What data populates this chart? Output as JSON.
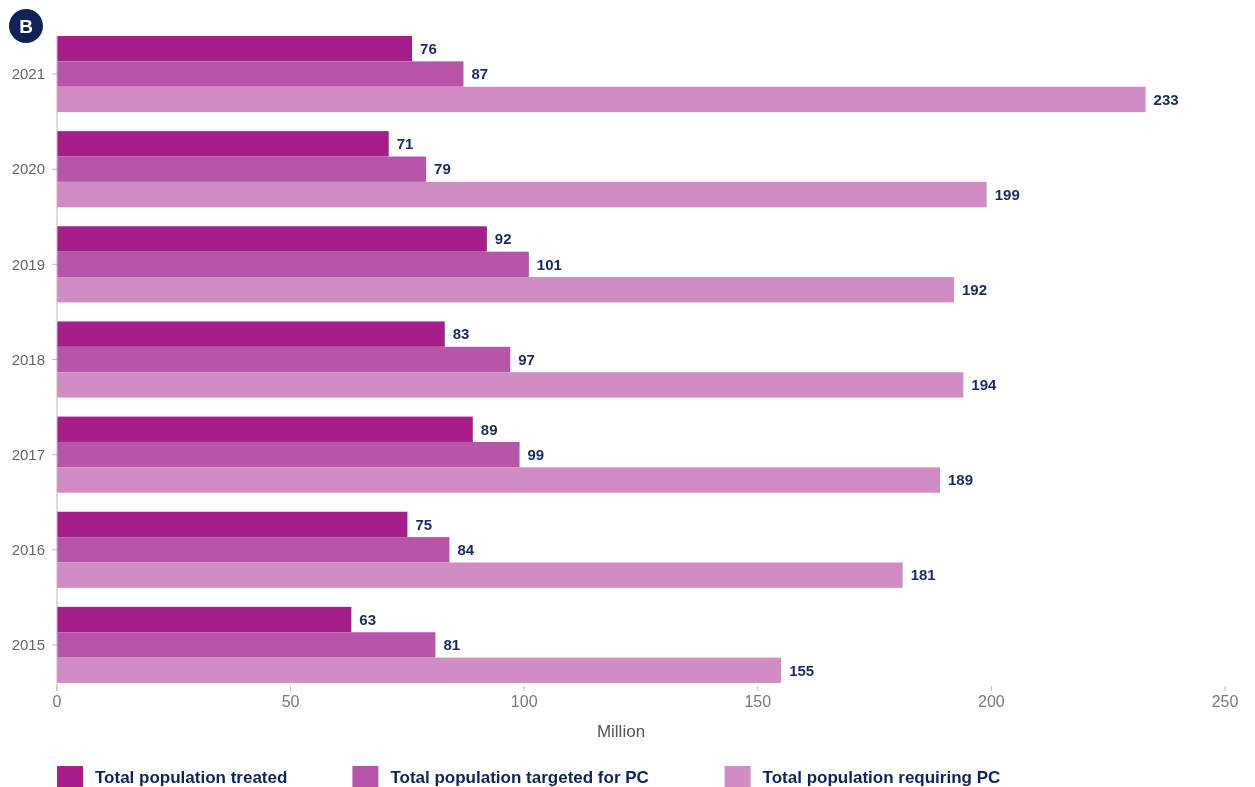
{
  "chart_data": {
    "type": "bar",
    "orientation": "horizontal",
    "xlabel": "Million",
    "annotations": [
      "B"
    ],
    "categories": [
      "2021",
      "2020",
      "2019",
      "2018",
      "2017",
      "2016",
      "2015"
    ],
    "series": [
      {
        "name": "Total population treated",
        "color": "#a51e8a",
        "values": [
          76,
          71,
          92,
          83,
          89,
          75,
          63
        ]
      },
      {
        "name": "Total population targeted for PC",
        "color": "#b955a8",
        "values": [
          87,
          79,
          101,
          97,
          99,
          84,
          81
        ]
      },
      {
        "name": "Total population requiring PC",
        "color": "#d18dc3",
        "values": [
          233,
          199,
          192,
          194,
          189,
          181,
          155
        ]
      }
    ],
    "xlim": [
      0,
      250
    ],
    "xticks": [
      0,
      50,
      100,
      150,
      200,
      250
    ],
    "data_labels": true,
    "grid": false,
    "legend": "bottom"
  }
}
